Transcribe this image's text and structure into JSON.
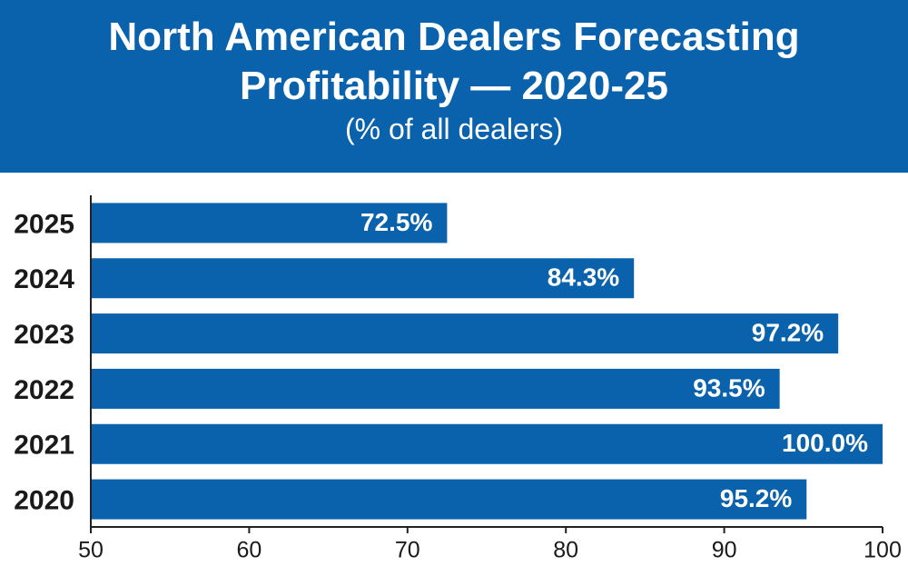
{
  "chart_data": {
    "type": "hbar",
    "title": "North American Dealers Forecasting Profitability — 2020-25",
    "subtitle": "(% of all dealers)",
    "categories": [
      "2025",
      "2024",
      "2023",
      "2022",
      "2021",
      "2020"
    ],
    "values": [
      72.5,
      84.3,
      97.2,
      93.5,
      100.0,
      95.2
    ],
    "value_labels": [
      "72.5%",
      "84.3%",
      "97.2%",
      "93.5%",
      "100.0%",
      "95.2%"
    ],
    "color": "#0a62ad",
    "xlim": [
      50,
      100
    ],
    "xticks": [
      50,
      60,
      70,
      80,
      90,
      100
    ]
  }
}
